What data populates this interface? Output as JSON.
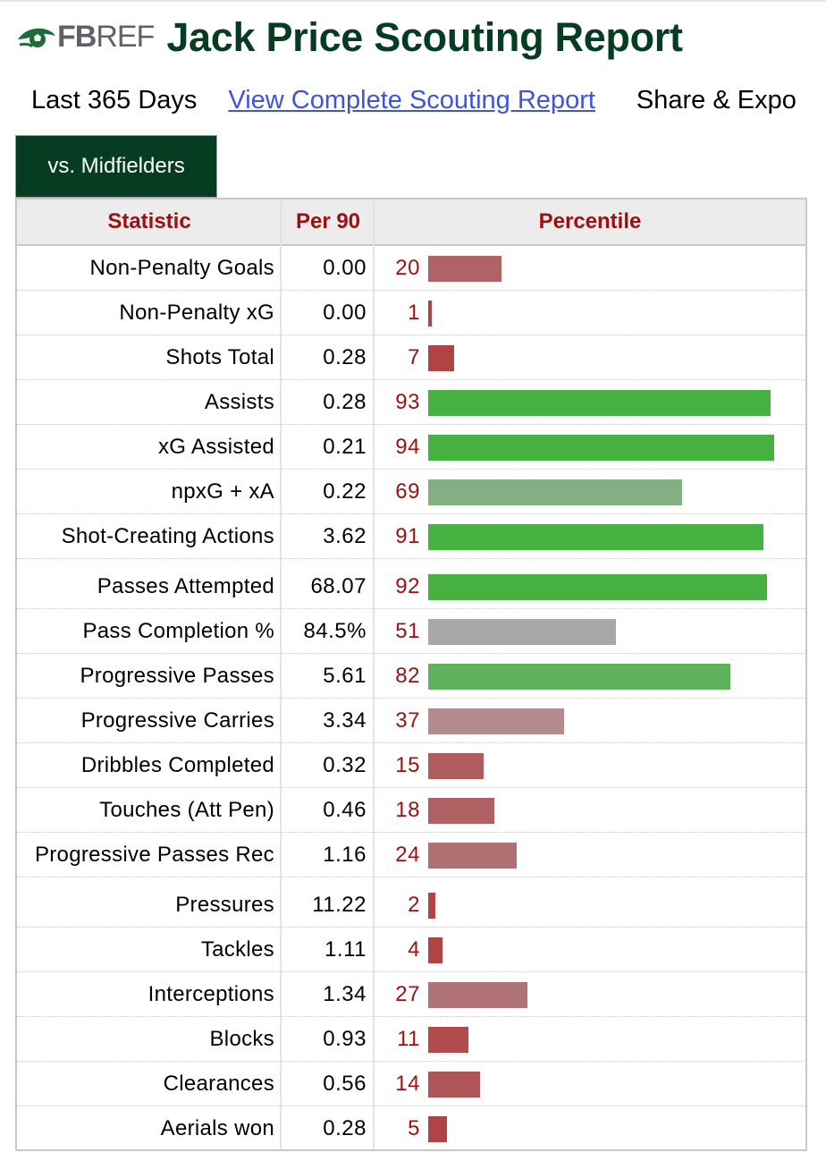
{
  "header": {
    "logo_fb": "FB",
    "logo_ref": "REF",
    "title": "Jack Price Scouting Report"
  },
  "subnav": {
    "period": "Last 365 Days",
    "link": "View Complete Scouting Report",
    "share": "Share & Expo"
  },
  "tab": {
    "label": "vs. Midfielders"
  },
  "table": {
    "columns": [
      "Statistic",
      "Per 90",
      "Percentile"
    ],
    "colors": {
      "high": "#46b041",
      "mid_high": "#5fb25a",
      "mid_green": "#83b083",
      "neutral": "#a8a8a8",
      "mid_low": "#b38b8d",
      "low": "#b06b6b",
      "very_low": "#b04444",
      "percentile_text": "#9b1010"
    },
    "sections": [
      {
        "rows": [
          {
            "stat": "Non-Penalty Goals",
            "per90": "0.00",
            "percentile": "20",
            "pct": 20,
            "color": "#b06366"
          },
          {
            "stat": "Non-Penalty xG",
            "per90": "0.00",
            "percentile": "1",
            "pct": 1,
            "color": "#b04444"
          },
          {
            "stat": "Shots Total",
            "per90": "0.28",
            "percentile": "7",
            "pct": 7,
            "color": "#b04444"
          },
          {
            "stat": "Assists",
            "per90": "0.28",
            "percentile": "93",
            "pct": 93,
            "color": "#46b041"
          },
          {
            "stat": "xG Assisted",
            "per90": "0.21",
            "percentile": "94",
            "pct": 94,
            "color": "#46b041"
          },
          {
            "stat": "npxG + xA",
            "per90": "0.22",
            "percentile": "69",
            "pct": 69,
            "color": "#83b083"
          },
          {
            "stat": "Shot-Creating Actions",
            "per90": "3.62",
            "percentile": "91",
            "pct": 91,
            "color": "#46b041"
          }
        ]
      },
      {
        "rows": [
          {
            "stat": "Passes Attempted",
            "per90": "68.07",
            "percentile": "92",
            "pct": 92,
            "color": "#46b041"
          },
          {
            "stat": "Pass Completion %",
            "per90": "84.5%",
            "percentile": "51",
            "pct": 51,
            "color": "#a8a8a8"
          },
          {
            "stat": "Progressive Passes",
            "per90": "5.61",
            "percentile": "82",
            "pct": 82,
            "color": "#5fb25a"
          },
          {
            "stat": "Progressive Carries",
            "per90": "3.34",
            "percentile": "37",
            "pct": 37,
            "color": "#b38b8d"
          },
          {
            "stat": "Dribbles Completed",
            "per90": "0.32",
            "percentile": "15",
            "pct": 15,
            "color": "#b05b5e"
          },
          {
            "stat": "Touches (Att Pen)",
            "per90": "0.46",
            "percentile": "18",
            "pct": 18,
            "color": "#b05f62"
          },
          {
            "stat": "Progressive Passes Rec",
            "per90": "1.16",
            "percentile": "24",
            "pct": 24,
            "color": "#b06f71"
          }
        ]
      },
      {
        "rows": [
          {
            "stat": "Pressures",
            "per90": "11.22",
            "percentile": "2",
            "pct": 2,
            "color": "#b04444"
          },
          {
            "stat": "Tackles",
            "per90": "1.11",
            "percentile": "4",
            "pct": 4,
            "color": "#b04444"
          },
          {
            "stat": "Interceptions",
            "per90": "1.34",
            "percentile": "27",
            "pct": 27,
            "color": "#b07476"
          },
          {
            "stat": "Blocks",
            "per90": "0.93",
            "percentile": "11",
            "pct": 11,
            "color": "#b04c4e"
          },
          {
            "stat": "Clearances",
            "per90": "0.56",
            "percentile": "14",
            "pct": 14,
            "color": "#b05557"
          },
          {
            "stat": "Aerials won",
            "per90": "0.28",
            "percentile": "5",
            "pct": 5,
            "color": "#b04444"
          }
        ]
      }
    ]
  }
}
